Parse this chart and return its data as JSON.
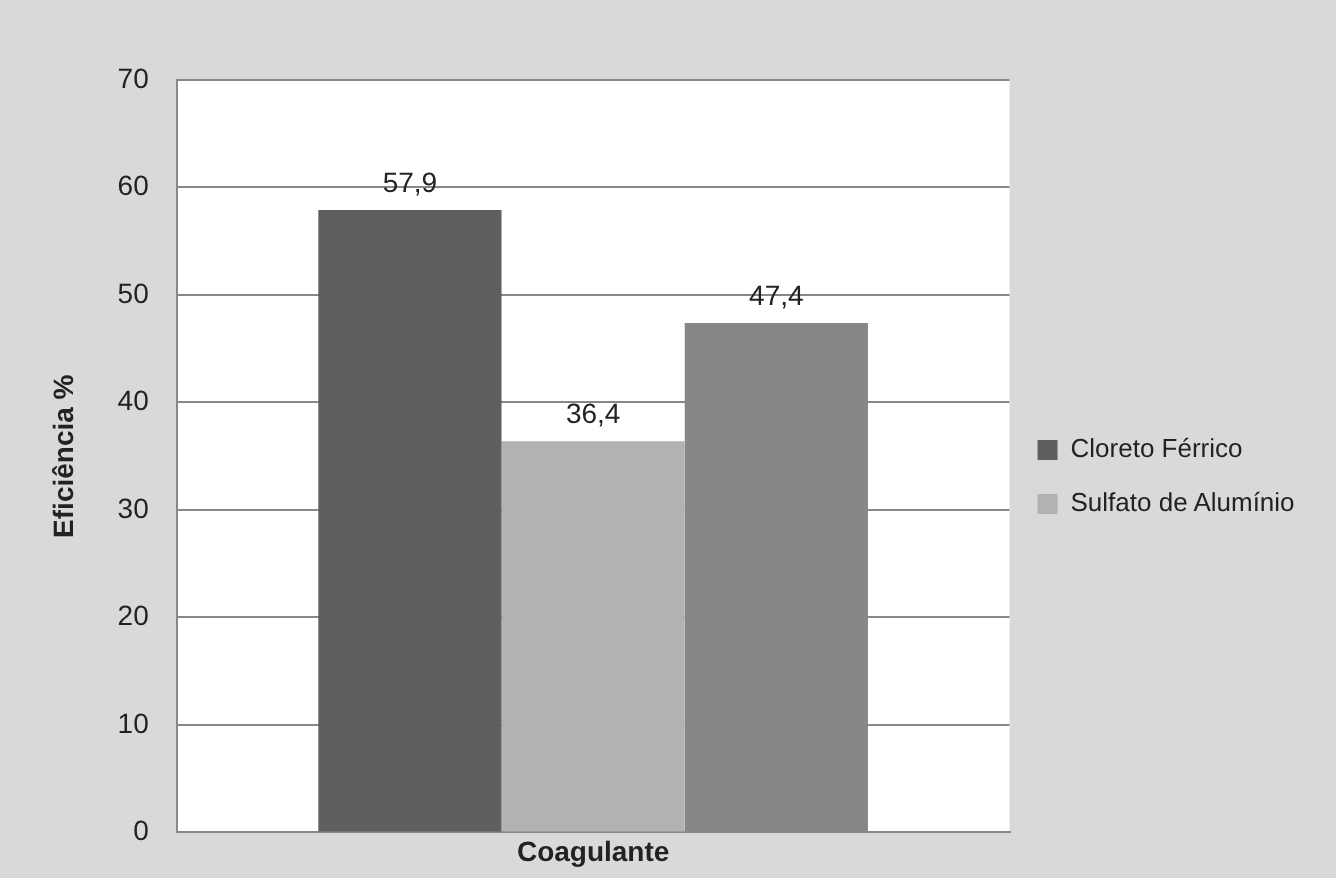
{
  "chart_data": {
    "type": "bar",
    "ylabel": "Eficiência %",
    "categories": [
      "Coagulante"
    ],
    "series": [
      {
        "name": "Cloreto Férrico",
        "color": "#5f5f5f",
        "values": [
          57.9
        ],
        "value_labels": [
          "57,9"
        ]
      },
      {
        "name": "Sulfato de Alumínio",
        "color": "#b2b2b2",
        "values": [
          36.4
        ],
        "value_labels": [
          "36,4"
        ]
      },
      {
        "color": "#878787",
        "values": [
          47.4
        ],
        "value_labels": [
          "47,4"
        ]
      }
    ],
    "ylim": [
      0,
      70
    ],
    "yticks": [
      0,
      10,
      20,
      30,
      40,
      50,
      60,
      70
    ],
    "grid": "y",
    "legend": "right"
  }
}
